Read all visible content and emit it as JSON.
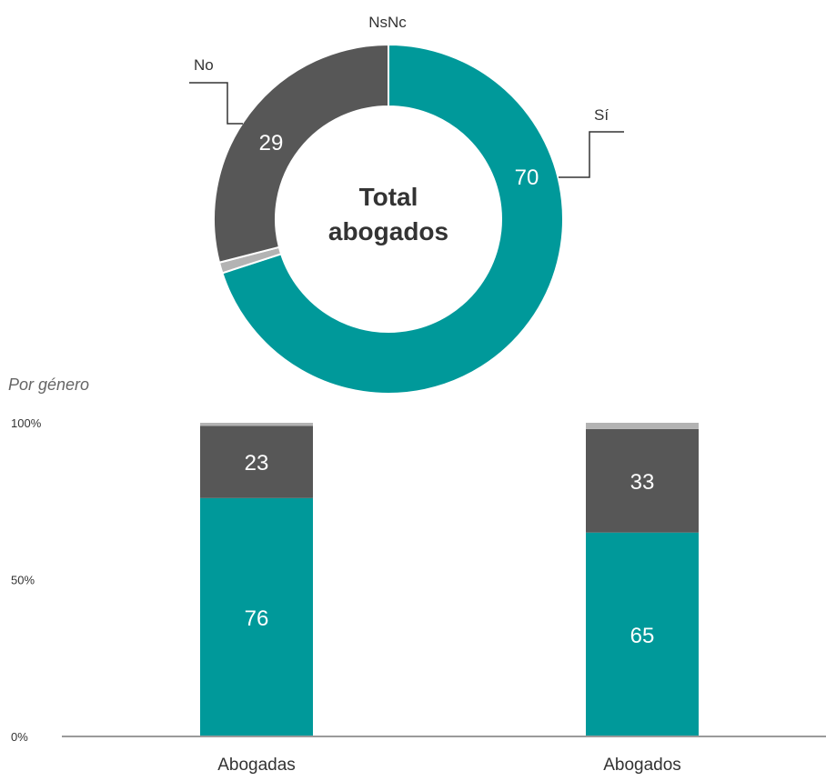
{
  "colors": {
    "si": "#00999a",
    "no": "#575757",
    "nsnc": "#b3b3b3",
    "axis": "#9a9a9a",
    "label_light": "#ffffff",
    "label_dark": "#333333",
    "subtitle": "#666666"
  },
  "chart_data": [
    {
      "type": "pie",
      "variant": "donut",
      "center_label": [
        "Total",
        "abogados"
      ],
      "slices": [
        {
          "name": "Sí",
          "value": 70
        },
        {
          "name": "NsNc",
          "value": 1
        },
        {
          "name": "No",
          "value": 29
        }
      ]
    },
    {
      "type": "bar",
      "stacked": true,
      "subtitle": "Por género",
      "categories": [
        "Abogadas",
        "Abogados"
      ],
      "series": [
        {
          "name": "Sí",
          "values": [
            76,
            65
          ]
        },
        {
          "name": "No",
          "values": [
            23,
            33
          ]
        },
        {
          "name": "NsNc",
          "values": [
            1,
            2
          ]
        }
      ],
      "yticks": [
        "0%",
        "50%",
        "100%"
      ],
      "ylim": [
        0,
        100
      ]
    }
  ]
}
